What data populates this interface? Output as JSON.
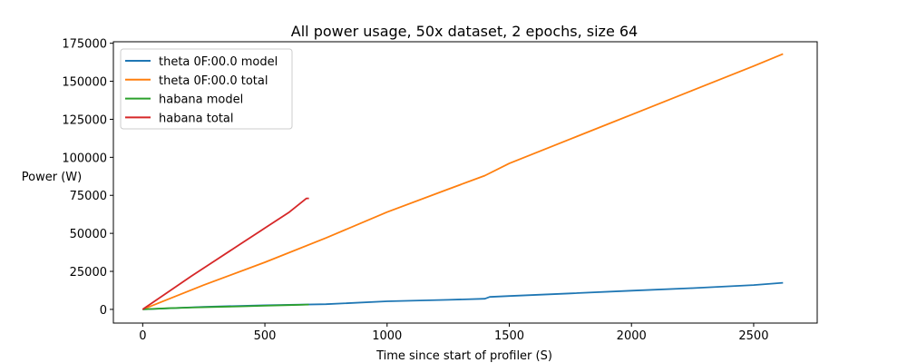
{
  "chart_data": {
    "type": "line",
    "title": "All power usage, 50x dataset, 2 epochs, size 64",
    "xlabel": "Time since start of profiler (S)",
    "ylabel": "Power (W)",
    "xlim": [
      -120,
      2760
    ],
    "ylim": [
      -9000,
      176000
    ],
    "xticks": [
      0,
      500,
      1000,
      1500,
      2000,
      2500
    ],
    "yticks": [
      0,
      25000,
      50000,
      75000,
      100000,
      125000,
      150000,
      175000
    ],
    "grid": false,
    "legend_position": "top-left",
    "series": [
      {
        "name": "theta 0F:00.0 model",
        "color": "#1f77b4",
        "x": [
          0,
          250,
          500,
          750,
          1000,
          1250,
          1400,
          1420,
          1500,
          1750,
          2000,
          2250,
          2500,
          2620
        ],
        "y": [
          0,
          1700,
          2700,
          3400,
          5300,
          6300,
          7000,
          8200,
          8800,
          10500,
          12300,
          14000,
          16000,
          17500
        ]
      },
      {
        "name": "theta 0F:00.0 total",
        "color": "#ff7f0e",
        "x": [
          0,
          250,
          500,
          750,
          1000,
          1250,
          1400,
          1500,
          1750,
          2000,
          2250,
          2500,
          2620
        ],
        "y": [
          0,
          16000,
          31000,
          47000,
          64000,
          79000,
          88000,
          96000,
          112000,
          128000,
          144000,
          160000,
          168000
        ]
      },
      {
        "name": "habana model",
        "color": "#2ca02c",
        "x": [
          0,
          100,
          200,
          300,
          400,
          500,
          600,
          680
        ],
        "y": [
          0,
          700,
          1200,
          1600,
          2000,
          2400,
          2800,
          3200
        ]
      },
      {
        "name": "habana total",
        "color": "#d62728",
        "x": [
          0,
          100,
          200,
          300,
          400,
          500,
          600,
          670,
          680
        ],
        "y": [
          0,
          11000,
          22000,
          32500,
          43000,
          53500,
          64000,
          73000,
          73000
        ]
      }
    ]
  }
}
